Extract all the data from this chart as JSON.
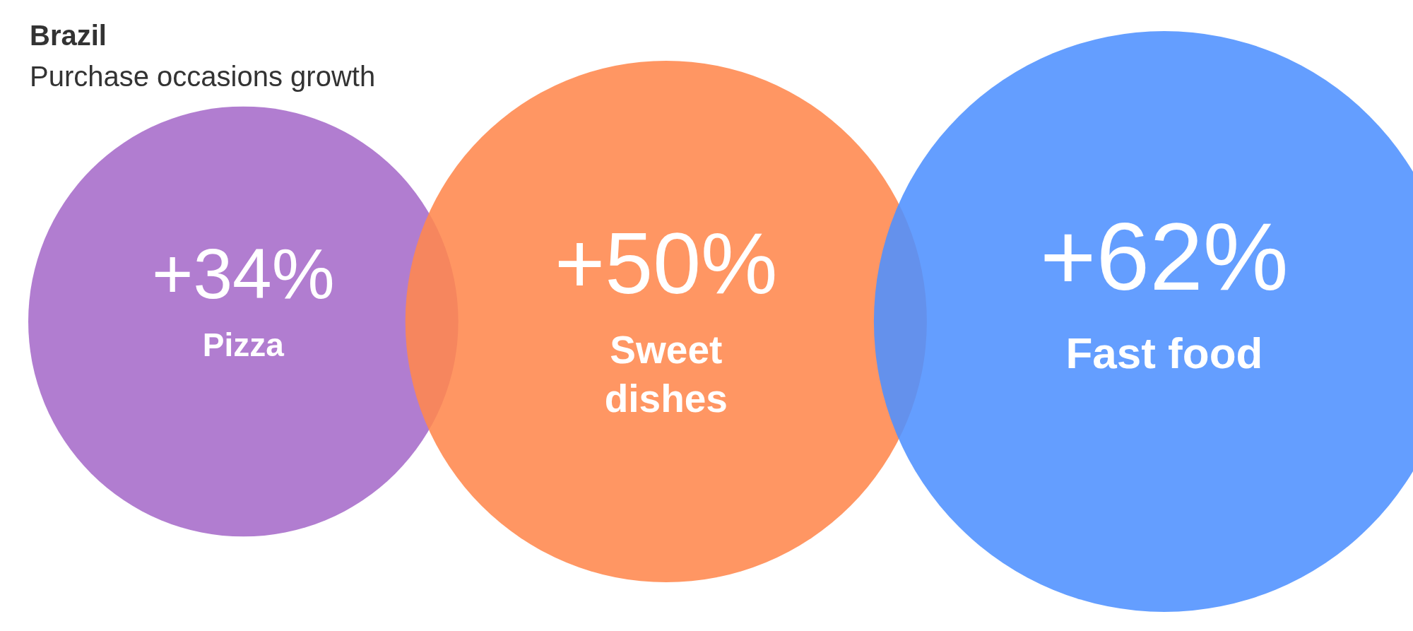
{
  "chart_data": {
    "type": "other",
    "title": "Brazil",
    "subtitle": "Purchase occasions growth",
    "categories": [
      "Pizza",
      "Sweet dishes",
      "Fast food"
    ],
    "values": [
      34,
      50,
      62
    ],
    "value_labels": [
      "+34%",
      "+50%",
      "+62%"
    ],
    "colors": [
      "#a66bc9",
      "#ff884d",
      "#4f91ff"
    ]
  }
}
